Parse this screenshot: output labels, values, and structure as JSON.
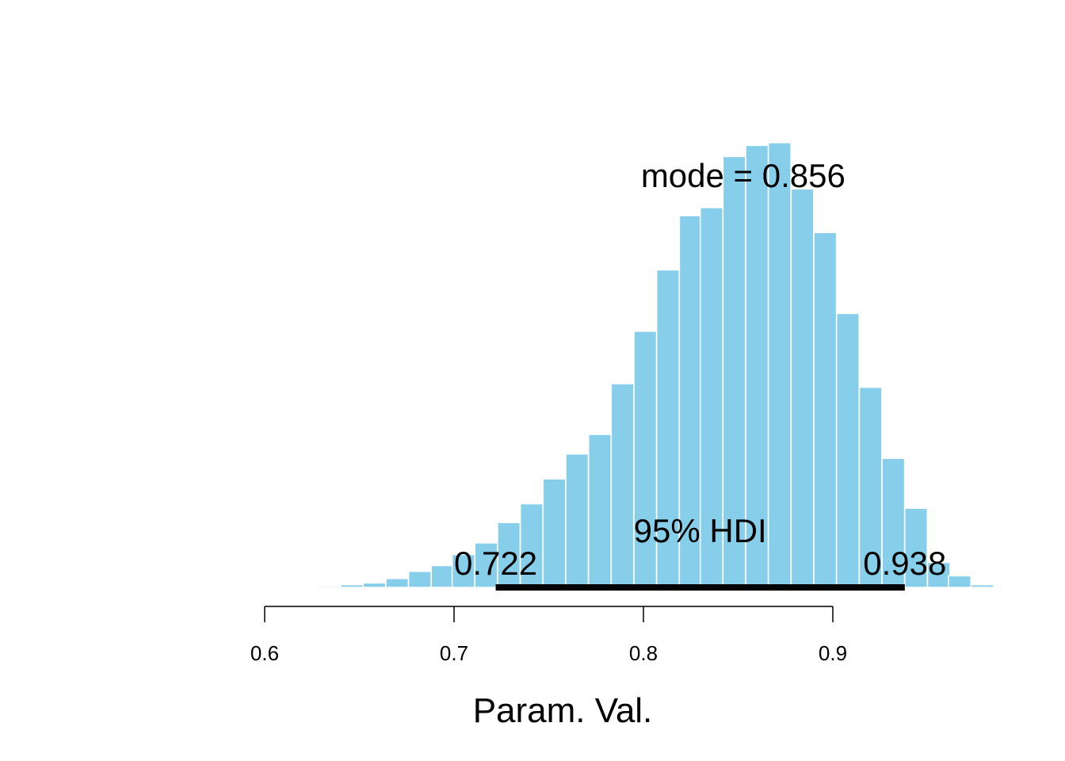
{
  "chart_data": {
    "type": "bar",
    "title": "",
    "xlabel": "Param. Val.",
    "ylabel": "",
    "xlim": [
      0.6,
      0.97
    ],
    "ylim": [
      0,
      100
    ],
    "x_ticks": [
      {
        "value": 0.6,
        "label": "0.6"
      },
      {
        "value": 0.7,
        "label": "0.7"
      },
      {
        "value": 0.8,
        "label": "0.8"
      },
      {
        "value": 0.9,
        "label": "0.9"
      }
    ],
    "grid": false,
    "bar_color": "#87CEEB",
    "bin_width": 0.0119,
    "bins": [
      {
        "start": 0.604,
        "value": 0.2
      },
      {
        "start": 0.616,
        "value": 0.0
      },
      {
        "start": 0.628,
        "value": 0.3
      },
      {
        "start": 0.64,
        "value": 0.6
      },
      {
        "start": 0.652,
        "value": 1.0
      },
      {
        "start": 0.664,
        "value": 2.0
      },
      {
        "start": 0.676,
        "value": 3.6
      },
      {
        "start": 0.688,
        "value": 4.9
      },
      {
        "start": 0.699,
        "value": 7.4
      },
      {
        "start": 0.711,
        "value": 10.0
      },
      {
        "start": 0.723,
        "value": 14.6
      },
      {
        "start": 0.735,
        "value": 18.8
      },
      {
        "start": 0.747,
        "value": 24.4
      },
      {
        "start": 0.759,
        "value": 30.0
      },
      {
        "start": 0.771,
        "value": 34.4
      },
      {
        "start": 0.783,
        "value": 45.8
      },
      {
        "start": 0.795,
        "value": 57.6
      },
      {
        "start": 0.807,
        "value": 71.4
      },
      {
        "start": 0.819,
        "value": 83.6
      },
      {
        "start": 0.83,
        "value": 85.4
      },
      {
        "start": 0.842,
        "value": 96.9
      },
      {
        "start": 0.854,
        "value": 99.4
      },
      {
        "start": 0.866,
        "value": 100.0
      },
      {
        "start": 0.878,
        "value": 89.6
      },
      {
        "start": 0.89,
        "value": 79.8
      },
      {
        "start": 0.902,
        "value": 61.6
      },
      {
        "start": 0.914,
        "value": 45.0
      },
      {
        "start": 0.926,
        "value": 29.0
      },
      {
        "start": 0.938,
        "value": 17.8
      },
      {
        "start": 0.95,
        "value": 5.6
      },
      {
        "start": 0.961,
        "value": 2.6
      },
      {
        "start": 0.973,
        "value": 0.6
      }
    ],
    "mode": {
      "value": 0.856,
      "label": "mode = 0.856"
    },
    "hdi": {
      "label": "95% HDI",
      "low": 0.722,
      "high": 0.938,
      "low_label": "0.722",
      "high_label": "0.938",
      "color": "#000000"
    }
  }
}
